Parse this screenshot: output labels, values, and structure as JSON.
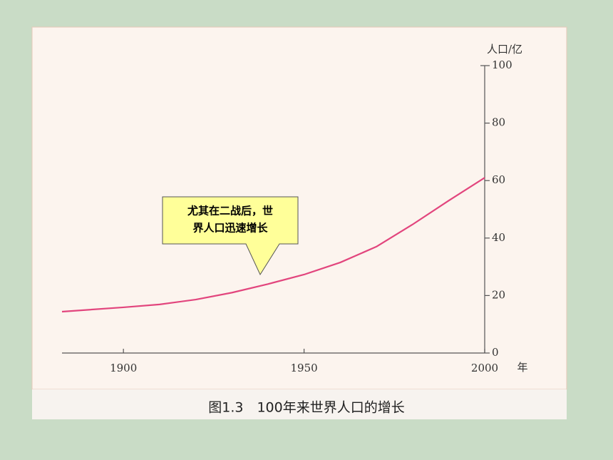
{
  "chart_data": {
    "type": "line",
    "x_label": "年",
    "y_label": "人口/亿",
    "caption": "图1.3　100年来世界人口的增长",
    "annotation": [
      "尤其在二战后，世",
      "界人口迅速增长"
    ],
    "x": [
      1883,
      1900,
      1910,
      1920,
      1930,
      1940,
      1950,
      1960,
      1970,
      1980,
      1990,
      2000
    ],
    "series": [
      {
        "name": "世界人口",
        "color": "#e2457d",
        "values": [
          14.4,
          15.9,
          16.9,
          18.6,
          21,
          24,
          27.3,
          31.5,
          37,
          44.7,
          53,
          61
        ]
      }
    ],
    "xlim": [
      1883,
      2000
    ],
    "xticks": [
      1900,
      1950,
      2000
    ],
    "ylim": [
      0,
      100
    ],
    "yticks": [
      0,
      20,
      40,
      60,
      80,
      100
    ]
  }
}
